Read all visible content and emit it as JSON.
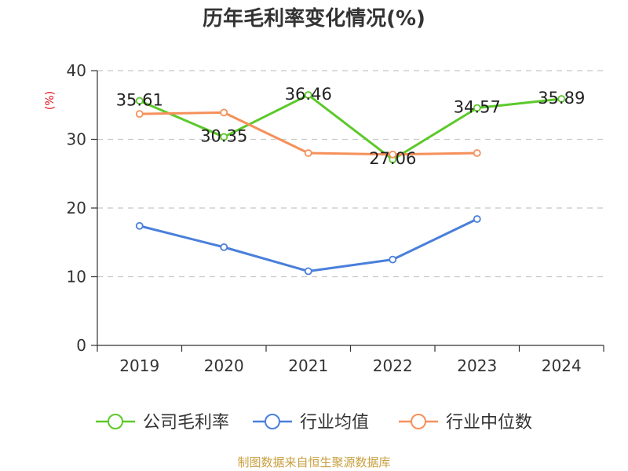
{
  "chart_data": {
    "type": "line",
    "title": "历年毛利率变化情况(%)",
    "unit_label": "(%)",
    "categories": [
      "2019",
      "2020",
      "2021",
      "2022",
      "2023",
      "2024"
    ],
    "ylim": [
      0,
      40
    ],
    "yticks": [
      "0",
      "10",
      "20",
      "30",
      "40"
    ],
    "grid": true,
    "legend_position": "bottom",
    "series": [
      {
        "name": "公司毛利率",
        "color": "#5cc92a",
        "values": [
          35.61,
          30.35,
          36.46,
          27.06,
          34.57,
          35.89
        ],
        "labels": [
          "35.61",
          "30.35",
          "36.46",
          "27.06",
          "34.57",
          "35.89"
        ]
      },
      {
        "name": "行业均值",
        "color": "#4a7fdb",
        "values": [
          17.4,
          14.3,
          10.8,
          12.5,
          18.4,
          null
        ]
      },
      {
        "name": "行业中位数",
        "color": "#f5905a",
        "values": [
          33.7,
          33.9,
          28.0,
          27.8,
          28.0,
          null
        ]
      }
    ],
    "source": "制图数据来自恒生聚源数据库"
  }
}
